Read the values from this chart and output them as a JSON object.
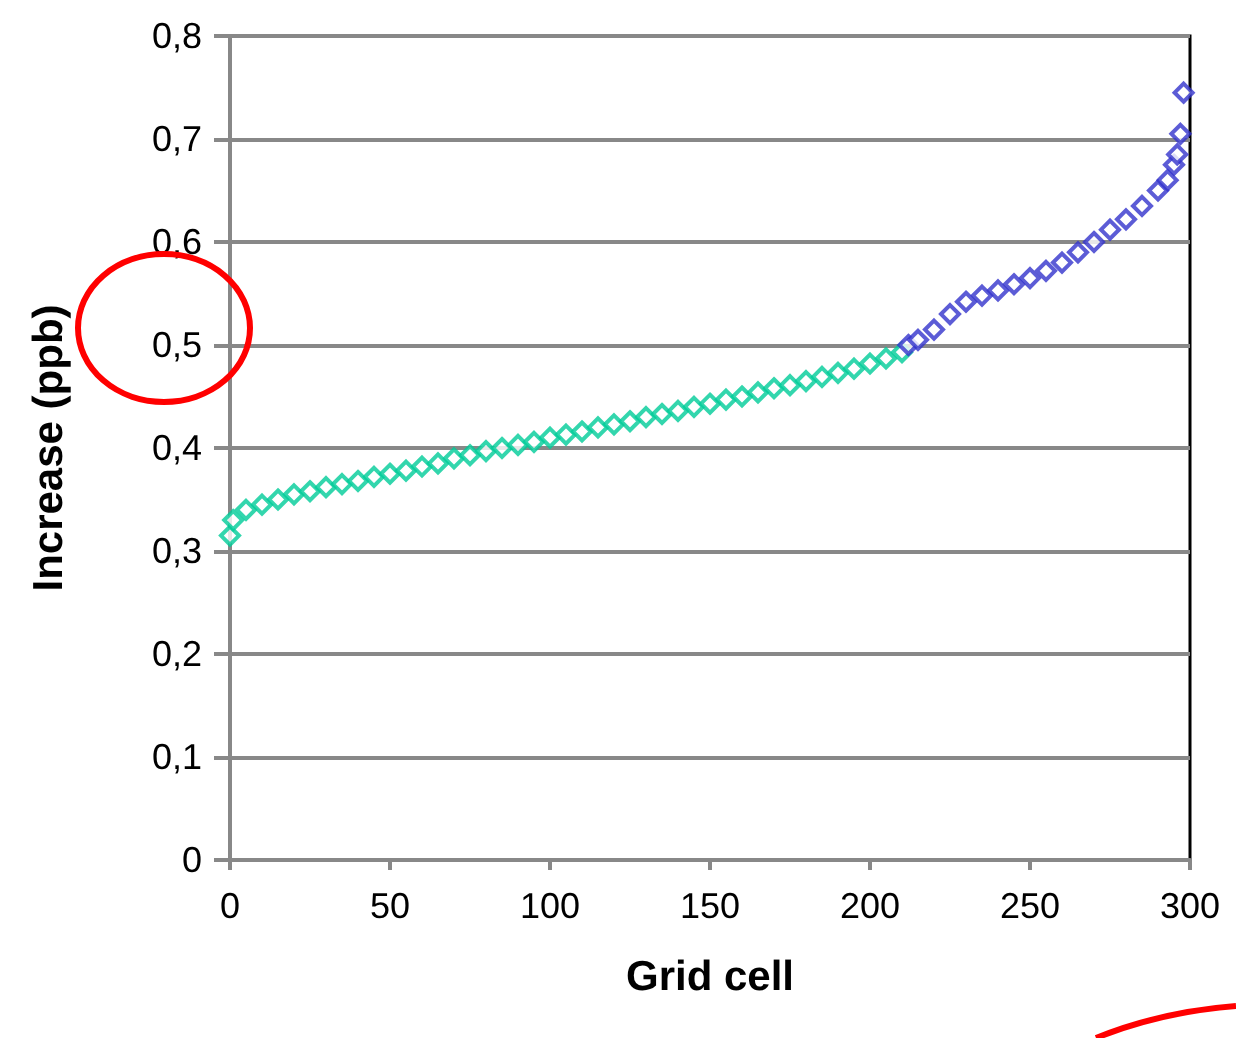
{
  "chart_data": {
    "type": "scatter",
    "xlabel": "Grid cell",
    "ylabel": "Increase (ppb)",
    "marker": "diamond",
    "grid": "y",
    "xlim": [
      0,
      300
    ],
    "xticks": [
      0,
      50,
      100,
      150,
      200,
      250,
      300
    ],
    "ylim": [
      0,
      0.8
    ],
    "yticks": [
      {
        "value": 0,
        "label": "0"
      },
      {
        "value": 0.1,
        "label": "0,1"
      },
      {
        "value": 0.2,
        "label": "0,2"
      },
      {
        "value": 0.3,
        "label": "0,3"
      },
      {
        "value": 0.4,
        "label": "0,4"
      },
      {
        "value": 0.5,
        "label": "0,5"
      },
      {
        "value": 0.6,
        "label": "0,6"
      },
      {
        "value": 0.7,
        "label": "0,7"
      },
      {
        "value": 0.8,
        "label": "0,8"
      }
    ],
    "series": [
      {
        "color": "#00cc99",
        "x": [
          0,
          1,
          5,
          10,
          15,
          20,
          25,
          30,
          35,
          40,
          45,
          50,
          55,
          60,
          65,
          70,
          75,
          80,
          85,
          90,
          95,
          100,
          105,
          110,
          115,
          120,
          125,
          130,
          135,
          140,
          145,
          150,
          155,
          160,
          165,
          170,
          175,
          180,
          185,
          190,
          195,
          200,
          205,
          210
        ],
        "values": [
          0.315,
          0.33,
          0.34,
          0.345,
          0.35,
          0.355,
          0.358,
          0.362,
          0.365,
          0.368,
          0.372,
          0.375,
          0.378,
          0.382,
          0.385,
          0.39,
          0.393,
          0.397,
          0.4,
          0.403,
          0.406,
          0.41,
          0.413,
          0.416,
          0.42,
          0.423,
          0.426,
          0.43,
          0.433,
          0.436,
          0.44,
          0.443,
          0.447,
          0.45,
          0.454,
          0.458,
          0.461,
          0.465,
          0.469,
          0.473,
          0.477,
          0.482,
          0.487,
          0.493
        ]
      },
      {
        "color": "#3333cc",
        "x": [
          212,
          215,
          220,
          225,
          230,
          235,
          240,
          245,
          250,
          255,
          260,
          265,
          270,
          275,
          280,
          285,
          290,
          293,
          295,
          296,
          297,
          298
        ],
        "values": [
          0.5,
          0.505,
          0.515,
          0.53,
          0.542,
          0.548,
          0.553,
          0.559,
          0.565,
          0.572,
          0.58,
          0.59,
          0.6,
          0.612,
          0.622,
          0.635,
          0.65,
          0.66,
          0.675,
          0.685,
          0.705,
          0.745
        ]
      }
    ]
  }
}
